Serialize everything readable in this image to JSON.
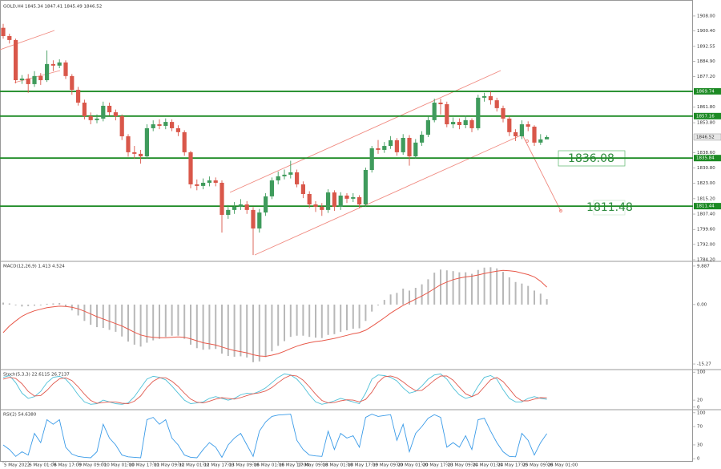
{
  "chart_data": [
    {
      "type": "candlestick",
      "title": "GOLD,H4 1845.34 1847.41 1845.49 1846.52",
      "categories": [
        "5 May 2022",
        null,
        null,
        null,
        "6 May 01:00",
        null,
        null,
        null,
        "6 May 17:00",
        null,
        null,
        null,
        "9 May 09:00",
        null,
        null,
        null,
        "10 May 01:00",
        null,
        null,
        null,
        "10 May 17:00",
        null,
        null,
        null,
        "11 May 09:00",
        null,
        null,
        null,
        "12 May 01:00",
        null,
        null,
        null,
        "12 May 17:00",
        null,
        null,
        null,
        "13 May 09:00",
        null,
        null,
        null,
        "16 May 01:00",
        null,
        null,
        null,
        "16 May 17:00",
        null,
        null,
        "17 May 09:00",
        null,
        null,
        null,
        "18 May 01:00",
        null,
        null,
        null,
        "18 May 17:00",
        null,
        null,
        null,
        "19 May 09:00",
        null,
        null,
        null,
        "20 May 01:00",
        null,
        null,
        null,
        "20 May 17:00",
        null,
        null,
        null,
        "23 May 09:00",
        null,
        null,
        null,
        "24 May 01:00",
        null,
        null,
        null,
        "24 May 17:00",
        null,
        null,
        null,
        "25 May 09:00",
        null,
        null,
        null,
        "26 May 01:00"
      ],
      "open": [
        1902.0,
        1897.8,
        1895.8,
        1875.4,
        1876.2,
        1873.4,
        1877.5,
        1875.4,
        1883.6,
        1882.8,
        1884.4,
        1877.5,
        1870.5,
        1864.0,
        1857.1,
        1855.1,
        1855.9,
        1862.4,
        1859.1,
        1857.1,
        1846.9,
        1838.8,
        1838.0,
        1836.7,
        1851.0,
        1853.0,
        1852.2,
        1854.2,
        1851.0,
        1849.0,
        1838.8,
        1822.5,
        1821.7,
        1823.3,
        1824.5,
        1823.3,
        1807.0,
        1809.5,
        1811.1,
        1812.3,
        1809.5,
        1800.1,
        1808.2,
        1816.4,
        1824.5,
        1826.6,
        1827.4,
        1828.6,
        1822.5,
        1817.6,
        1812.3,
        1811.1,
        1809.5,
        1818.4,
        1811.1,
        1816.8,
        1815.2,
        1816.0,
        1812.3,
        1829.8,
        1840.8,
        1840.0,
        1842.0,
        1844.9,
        1838.8,
        1846.1,
        1836.7,
        1843.7,
        1847.7,
        1855.1,
        1864.0,
        1863.2,
        1853.0,
        1854.2,
        1852.6,
        1855.1,
        1851.0,
        1866.5,
        1867.3,
        1865.2,
        1861.2,
        1855.9,
        1849.0,
        1846.9,
        1853.0,
        1851.8,
        1843.7,
        1845.34
      ],
      "high": [
        1904.0,
        1899.0,
        1896.5,
        1878.0,
        1878.5,
        1880.0,
        1879.0,
        1890.5,
        1885.5,
        1886.0,
        1885.5,
        1878.5,
        1872.0,
        1865.5,
        1859.0,
        1858.0,
        1864.5,
        1864.0,
        1860.5,
        1858.0,
        1848.0,
        1842.0,
        1840.0,
        1853.0,
        1855.0,
        1855.5,
        1856.0,
        1855.5,
        1852.5,
        1850.0,
        1839.5,
        1825.0,
        1825.5,
        1826.5,
        1826.0,
        1824.5,
        1812.0,
        1813.5,
        1815.0,
        1814.0,
        1811.0,
        1810.0,
        1818.0,
        1826.0,
        1829.0,
        1830.0,
        1834.5,
        1830.0,
        1824.0,
        1819.0,
        1814.0,
        1813.0,
        1820.0,
        1819.5,
        1818.5,
        1818.0,
        1818.0,
        1817.0,
        1831.0,
        1842.0,
        1845.0,
        1844.0,
        1847.0,
        1846.0,
        1848.0,
        1847.5,
        1845.5,
        1849.5,
        1857.0,
        1866.0,
        1866.0,
        1864.5,
        1856.5,
        1856.0,
        1857.5,
        1856.0,
        1868.0,
        1869.0,
        1869.7,
        1866.5,
        1862.5,
        1857.0,
        1850.5,
        1855.0,
        1854.5,
        1852.5,
        1848.0,
        1847.41
      ],
      "low": [
        1896.5,
        1894.0,
        1873.8,
        1873.5,
        1869.0,
        1872.0,
        1873.0,
        1874.5,
        1880.0,
        1881.5,
        1876.0,
        1868.0,
        1862.5,
        1855.5,
        1853.0,
        1853.5,
        1854.5,
        1857.5,
        1855.0,
        1845.0,
        1836.5,
        1835.5,
        1833.0,
        1835.5,
        1849.5,
        1850.5,
        1850.5,
        1849.5,
        1847.0,
        1837.0,
        1820.5,
        1819.5,
        1820.0,
        1821.5,
        1821.5,
        1798.0,
        1805.0,
        1807.5,
        1809.5,
        1807.5,
        1786.6,
        1798.0,
        1806.5,
        1815.0,
        1822.5,
        1825.0,
        1825.5,
        1821.0,
        1815.5,
        1810.5,
        1808.5,
        1806.5,
        1808.0,
        1809.0,
        1809.5,
        1813.0,
        1813.5,
        1810.5,
        1811.0,
        1828.5,
        1838.0,
        1838.5,
        1840.5,
        1837.0,
        1837.5,
        1832.0,
        1835.5,
        1842.0,
        1846.5,
        1854.0,
        1858.0,
        1851.5,
        1851.0,
        1850.5,
        1851.0,
        1849.0,
        1850.0,
        1864.5,
        1863.0,
        1859.5,
        1854.0,
        1847.0,
        1844.5,
        1845.5,
        1849.5,
        1842.0,
        1842.5,
        1845.49
      ],
      "close": [
        1897.8,
        1895.8,
        1875.4,
        1876.2,
        1873.4,
        1877.5,
        1875.4,
        1883.6,
        1882.8,
        1884.4,
        1877.5,
        1870.5,
        1864.0,
        1857.1,
        1855.1,
        1855.9,
        1862.4,
        1859.1,
        1857.1,
        1846.9,
        1838.8,
        1838.0,
        1836.7,
        1851.0,
        1853.0,
        1852.2,
        1854.2,
        1851.0,
        1849.0,
        1838.8,
        1822.5,
        1821.7,
        1823.3,
        1824.5,
        1823.3,
        1807.0,
        1809.5,
        1811.1,
        1812.3,
        1809.5,
        1800.1,
        1808.2,
        1816.4,
        1824.5,
        1826.6,
        1827.4,
        1828.6,
        1822.5,
        1817.6,
        1812.3,
        1811.1,
        1809.5,
        1818.4,
        1811.1,
        1816.8,
        1815.2,
        1816.0,
        1812.3,
        1829.8,
        1840.8,
        1840.0,
        1842.0,
        1844.9,
        1838.8,
        1846.1,
        1836.7,
        1843.7,
        1847.7,
        1855.1,
        1864.0,
        1863.2,
        1853.0,
        1854.2,
        1852.6,
        1855.1,
        1851.0,
        1866.5,
        1867.3,
        1865.2,
        1861.2,
        1855.9,
        1849.0,
        1846.9,
        1853.0,
        1851.8,
        1843.7,
        1845.34,
        1846.52
      ],
      "up_color": "#3f9b5c",
      "down_color": "#d9574a",
      "ylim": [
        1783.8,
        1914.9
      ],
      "yticks": [
        {
          "value": 1908,
          "label": "1908.00"
        },
        {
          "value": 1900.4,
          "label": "1900.40"
        },
        1892.55,
        {
          "value": 1884.9,
          "label": "1884.90"
        },
        {
          "value": 1877.2,
          "label": "1877.20"
        },
        {
          "value": 1861.8,
          "label": "1861.80"
        },
        {
          "value": 1853.8,
          "label": "1853.80"
        },
        {
          "value": 1838.6,
          "label": "1838.60"
        },
        {
          "value": 1830.8,
          "label": "1830.80"
        },
        {
          "value": 1823,
          "label": "1823.00"
        },
        {
          "value": 1815.2,
          "label": "1815.20"
        },
        {
          "value": 1807.4,
          "label": "1807.40"
        },
        {
          "value": 1799.6,
          "label": "1799.60"
        },
        {
          "value": 1792,
          "label": "1792.00"
        },
        {
          "value": 1784.2,
          "label": "1784.20"
        }
      ],
      "levels": [
        1869.74,
        1857.16,
        1835.84,
        1811.44
      ],
      "level_color": "#1c8a24",
      "current_price": 1846.52,
      "annotations": [
        "1836.08",
        "1811.48"
      ]
    },
    {
      "type": "macd",
      "title": "MACD(12,26,9) 1.413 4.524",
      "ylim": [
        -16.5,
        10.9
      ],
      "yticks": [
        9.887,
        {
          "value": 0,
          "label": "0.00"
        },
        -15.27
      ],
      "series": [
        {
          "style": "histogram",
          "color": "#b8b8b8",
          "values": [
            0.5,
            0.3,
            -0.2,
            -0.5,
            -0.4,
            -0.3,
            -0.2,
            0.2,
            0.3,
            0.4,
            -0.5,
            -1.5,
            -2.8,
            -4.2,
            -5.2,
            -5.8,
            -6.0,
            -6.5,
            -7.0,
            -8.2,
            -9.5,
            -10.3,
            -10.8,
            -9.8,
            -9.2,
            -8.8,
            -8.3,
            -8.0,
            -8.0,
            -8.8,
            -10.3,
            -11.2,
            -11.6,
            -11.5,
            -11.4,
            -12.6,
            -13.2,
            -13.4,
            -13.3,
            -13.6,
            -14.8,
            -14.6,
            -13.5,
            -12.0,
            -10.6,
            -9.4,
            -8.3,
            -8.0,
            -8.0,
            -8.3,
            -8.5,
            -8.6,
            -7.8,
            -7.6,
            -7.0,
            -6.6,
            -6.2,
            -6.1,
            -4.2,
            -1.8,
            -0.2,
            1.2,
            2.6,
            3.0,
            4.1,
            3.6,
            4.3,
            5.2,
            6.5,
            8.2,
            9.0,
            8.8,
            8.6,
            8.3,
            8.3,
            7.9,
            8.9,
            9.5,
            9.6,
            9.3,
            8.4,
            7.0,
            5.8,
            5.4,
            4.8,
            3.6,
            2.8,
            1.4
          ]
        },
        {
          "style": "line",
          "color": "#e8594a",
          "values": [
            -7.2,
            -5.5,
            -4.2,
            -3.0,
            -2.2,
            -1.6,
            -1.2,
            -0.8,
            -0.6,
            -0.4,
            -0.5,
            -0.7,
            -1.1,
            -1.7,
            -2.4,
            -3.1,
            -3.7,
            -4.3,
            -4.9,
            -5.5,
            -6.3,
            -7.1,
            -7.8,
            -8.2,
            -8.4,
            -8.5,
            -8.5,
            -8.4,
            -8.3,
            -8.4,
            -8.8,
            -9.3,
            -9.8,
            -10.1,
            -10.4,
            -10.9,
            -11.4,
            -11.8,
            -12.1,
            -12.4,
            -12.9,
            -13.2,
            -13.3,
            -13.0,
            -12.6,
            -12.0,
            -11.3,
            -10.7,
            -10.2,
            -9.8,
            -9.5,
            -9.3,
            -9.0,
            -8.7,
            -8.3,
            -7.9,
            -7.5,
            -7.2,
            -6.6,
            -5.6,
            -4.5,
            -3.4,
            -2.2,
            -1.2,
            -0.2,
            0.6,
            1.4,
            2.2,
            3.1,
            4.1,
            5.1,
            5.8,
            6.4,
            6.8,
            7.1,
            7.3,
            7.6,
            8.0,
            8.3,
            8.6,
            8.8,
            8.7,
            8.5,
            8.1,
            7.7,
            7.1,
            6.0,
            4.5
          ]
        }
      ]
    },
    {
      "type": "line",
      "title": "Stoch(5,3,3) 22.6115 26.7137",
      "ylim": [
        -5,
        105
      ],
      "yticks": [
        100,
        20,
        0
      ],
      "series": [
        {
          "color": "#4fc0d8",
          "values": [
            85,
            90,
            70,
            40,
            25,
            30,
            45,
            70,
            85,
            88,
            80,
            60,
            35,
            15,
            8,
            10,
            20,
            15,
            10,
            8,
            12,
            30,
            55,
            80,
            88,
            85,
            78,
            60,
            40,
            20,
            10,
            12,
            15,
            25,
            30,
            25,
            20,
            25,
            35,
            40,
            38,
            45,
            55,
            70,
            85,
            95,
            92,
            80,
            60,
            35,
            15,
            8,
            12,
            18,
            25,
            20,
            15,
            10,
            40,
            80,
            92,
            90,
            85,
            75,
            55,
            40,
            45,
            60,
            80,
            92,
            95,
            80,
            55,
            35,
            25,
            30,
            60,
            85,
            90,
            80,
            50,
            25,
            15,
            15,
            25,
            30,
            25,
            22.6
          ]
        },
        {
          "color": "#e05a4f",
          "values": [
            80,
            85,
            82,
            67,
            45,
            32,
            33,
            48,
            67,
            81,
            84,
            76,
            58,
            37,
            19,
            11,
            13,
            15,
            15,
            11,
            10,
            17,
            32,
            56,
            74,
            84,
            84,
            74,
            59,
            40,
            23,
            14,
            12,
            17,
            23,
            27,
            25,
            23,
            27,
            33,
            38,
            41,
            46,
            56,
            70,
            83,
            91,
            89,
            77,
            58,
            37,
            19,
            12,
            13,
            18,
            21,
            20,
            15,
            22,
            43,
            71,
            87,
            89,
            84,
            72,
            58,
            47,
            48,
            62,
            77,
            89,
            89,
            77,
            57,
            38,
            30,
            38,
            58,
            78,
            85,
            73,
            52,
            30,
            18,
            18,
            23,
            27,
            26.7
          ]
        }
      ]
    },
    {
      "type": "line",
      "title": "RSI(2) 54.6380",
      "ylim": [
        -5,
        105
      ],
      "yticks": [
        100,
        70,
        30,
        0
      ],
      "series": [
        {
          "color": "#3a9be8",
          "values": [
            30,
            20,
            5,
            15,
            8,
            55,
            35,
            85,
            75,
            85,
            25,
            10,
            5,
            3,
            2,
            15,
            75,
            45,
            30,
            8,
            4,
            3,
            2,
            85,
            90,
            75,
            85,
            45,
            30,
            8,
            3,
            2,
            20,
            35,
            25,
            3,
            30,
            45,
            55,
            30,
            5,
            60,
            80,
            92,
            95,
            96,
            97,
            40,
            20,
            8,
            6,
            5,
            60,
            20,
            55,
            45,
            50,
            25,
            90,
            97,
            92,
            94,
            96,
            40,
            75,
            15,
            55,
            70,
            88,
            96,
            90,
            25,
            35,
            25,
            50,
            20,
            85,
            88,
            60,
            35,
            15,
            5,
            4,
            55,
            40,
            8,
            35,
            54.6
          ]
        }
      ]
    }
  ]
}
